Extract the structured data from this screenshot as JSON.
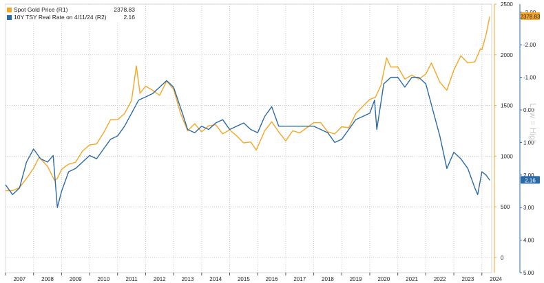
{
  "chart_data": {
    "type": "line",
    "x_range": [
      2007,
      2024.35
    ],
    "x_tick_labels": [
      "2007",
      "2008",
      "2009",
      "2010",
      "2011",
      "2012",
      "2013",
      "2014",
      "2015",
      "2016",
      "2017",
      "2018",
      "2019",
      "2020",
      "2021",
      "2022",
      "2023",
      "2024"
    ],
    "y_left": {
      "ticks": [
        "2500",
        "2000",
        "1500",
        "1000",
        "500",
        "0"
      ],
      "range": [
        -150,
        2500
      ]
    },
    "y_right": {
      "title": "Low = High",
      "inverted": true,
      "ticks": [
        "-3.00",
        "-2.00",
        "-1.00",
        "0.00",
        "1.00",
        "2.00",
        "3.00",
        "4.00",
        "5.00"
      ],
      "range": [
        -3.25,
        5.0
      ]
    },
    "grid": true,
    "legend_position": "top-left",
    "series": [
      {
        "name": "Spot Gold Price (R1)",
        "last_value": "2378.83",
        "color": "#f5a623",
        "axis": "left",
        "x": [
          2007.0,
          2007.25,
          2007.5,
          2007.75,
          2008.0,
          2008.2,
          2008.5,
          2008.75,
          2008.85,
          2009.0,
          2009.25,
          2009.5,
          2009.75,
          2010.0,
          2010.25,
          2010.5,
          2010.75,
          2011.0,
          2011.25,
          2011.5,
          2011.67,
          2011.8,
          2012.0,
          2012.25,
          2012.5,
          2012.75,
          2013.0,
          2013.25,
          2013.5,
          2013.75,
          2014.0,
          2014.25,
          2014.5,
          2014.75,
          2015.0,
          2015.25,
          2015.5,
          2015.75,
          2015.95,
          2016.25,
          2016.5,
          2016.75,
          2017.0,
          2017.25,
          2017.5,
          2017.75,
          2018.0,
          2018.25,
          2018.5,
          2018.75,
          2019.0,
          2019.25,
          2019.5,
          2019.75,
          2020.0,
          2020.2,
          2020.4,
          2020.6,
          2020.75,
          2021.0,
          2021.25,
          2021.5,
          2021.75,
          2022.0,
          2022.2,
          2022.5,
          2022.75,
          2023.0,
          2023.25,
          2023.5,
          2023.75,
          2023.95,
          2024.0,
          2024.15,
          2024.28
        ],
        "y": [
          660,
          660,
          690,
          780,
          880,
          990,
          900,
          760,
          780,
          870,
          920,
          940,
          1050,
          1110,
          1120,
          1230,
          1360,
          1360,
          1420,
          1550,
          1890,
          1620,
          1690,
          1650,
          1600,
          1740,
          1660,
          1420,
          1250,
          1320,
          1240,
          1300,
          1310,
          1220,
          1260,
          1200,
          1130,
          1140,
          1060,
          1250,
          1340,
          1240,
          1150,
          1250,
          1230,
          1280,
          1330,
          1330,
          1240,
          1220,
          1290,
          1280,
          1420,
          1490,
          1560,
          1580,
          1700,
          1970,
          1880,
          1880,
          1760,
          1800,
          1760,
          1810,
          1920,
          1730,
          1650,
          1850,
          1990,
          1920,
          1930,
          2060,
          2050,
          2200,
          2378.83
        ]
      },
      {
        "name": "10Y TSY Real Rate on 4/11/24 (R2)",
        "last_value": "2.16",
        "color": "#2a6aa7",
        "axis": "right",
        "x": [
          2007.0,
          2007.25,
          2007.5,
          2007.75,
          2008.0,
          2008.25,
          2008.5,
          2008.7,
          2008.85,
          2009.0,
          2009.25,
          2009.5,
          2009.75,
          2010.0,
          2010.25,
          2010.5,
          2010.75,
          2011.0,
          2011.25,
          2011.5,
          2011.75,
          2012.0,
          2012.25,
          2012.5,
          2012.75,
          2013.0,
          2013.35,
          2013.5,
          2013.75,
          2014.0,
          2014.25,
          2014.5,
          2014.75,
          2015.0,
          2015.25,
          2015.5,
          2015.75,
          2016.0,
          2016.25,
          2016.5,
          2016.75,
          2017.0,
          2017.25,
          2017.5,
          2017.75,
          2018.0,
          2018.25,
          2018.5,
          2018.75,
          2019.0,
          2019.25,
          2019.5,
          2019.75,
          2020.0,
          2020.17,
          2020.25,
          2020.5,
          2020.75,
          2021.0,
          2021.25,
          2021.5,
          2021.75,
          2022.0,
          2022.25,
          2022.5,
          2022.75,
          2023.0,
          2023.25,
          2023.5,
          2023.75,
          2023.85,
          2024.0,
          2024.15,
          2024.28
        ],
        "y": [
          2.3,
          2.6,
          2.4,
          1.6,
          1.2,
          1.5,
          1.6,
          1.4,
          3.0,
          2.5,
          1.9,
          1.8,
          1.6,
          1.4,
          1.5,
          1.2,
          0.9,
          0.8,
          0.5,
          0.1,
          -0.3,
          -0.4,
          -0.5,
          -0.7,
          -0.9,
          -0.7,
          0.2,
          0.6,
          0.7,
          0.5,
          0.6,
          0.4,
          0.3,
          0.6,
          0.5,
          0.4,
          0.6,
          0.7,
          0.2,
          -0.1,
          0.5,
          0.5,
          0.5,
          0.5,
          0.5,
          0.5,
          0.6,
          0.7,
          1.0,
          0.9,
          0.6,
          0.3,
          0.2,
          0.1,
          -0.3,
          0.6,
          -0.8,
          -1.0,
          -1.0,
          -0.7,
          -1.0,
          -1.0,
          -0.8,
          0.0,
          0.8,
          1.8,
          1.3,
          1.5,
          1.8,
          2.4,
          2.6,
          1.9,
          2.0,
          2.16
        ]
      }
    ]
  }
}
